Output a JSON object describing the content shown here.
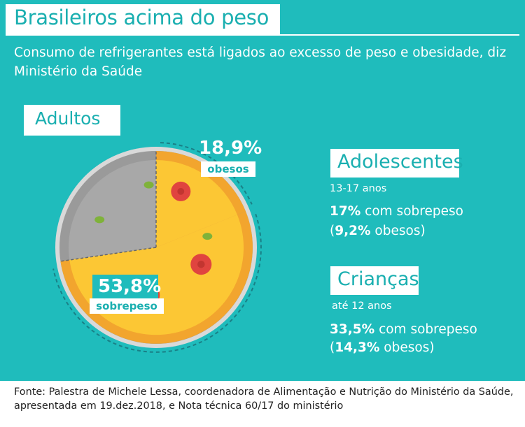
{
  "header": {
    "title": "Brasileiros acima do peso",
    "subtitle": "Consumo de refrigerantes está ligados ao excesso de peso e obesidade, diz Ministério da Saúde"
  },
  "adults": {
    "label": "Adultos",
    "obese_value": "18,9%",
    "obese_label": "obesos",
    "overweight_value": "53,8%",
    "overweight_label": "sobrepeso"
  },
  "teens": {
    "label": "Adolescentes",
    "age": "13-17 anos",
    "overweight_value": "17%",
    "overweight_text": " com sobrepeso",
    "obese_open": "(",
    "obese_value": "9,2%",
    "obese_text": " obesos)"
  },
  "children": {
    "label": "Crianças",
    "age": "até 12 anos",
    "overweight_value": "33,5%",
    "overweight_text": " com sobrepeso",
    "obese_open": "(",
    "obese_value": "14,3%",
    "obese_text": " obesos)"
  },
  "footer": {
    "source": "Fonte: Palestra de Michele Lessa, coordenadora de Alimentação e Nutrição do Ministério da Saúde, apresentada em 19.dez.2018, e Nota técnica 60/17 do ministério"
  },
  "chart_data": {
    "type": "pie",
    "categories": [
      "obesos",
      "sobrepeso"
    ],
    "values": [
      18.9,
      53.8
    ],
    "units": "%",
    "colors": {
      "background": "#1fbcbc",
      "accent_text": "#1aafb0",
      "crust": "#f2a52e",
      "cheese": "#fcc734",
      "pepperoni": "#e0443f",
      "olive": "#7fb23a",
      "eaten_slice": "#a8a8a8",
      "plate_rim": "#9a9a9a"
    }
  }
}
